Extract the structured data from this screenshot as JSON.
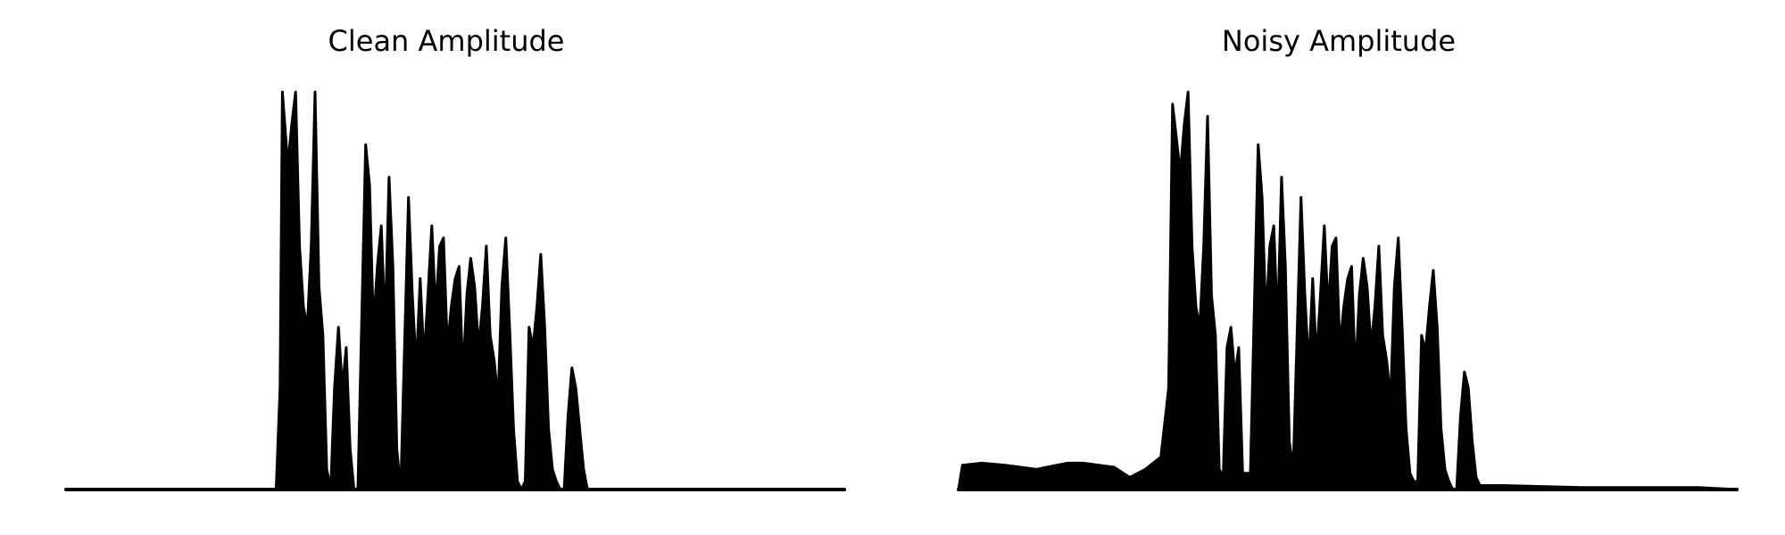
{
  "chart_data": [
    {
      "type": "area",
      "title": "Clean Amplitude",
      "xlabel": "",
      "ylabel": "",
      "axes_visible": false,
      "grid": false,
      "color": "#000000",
      "x": [
        0.0,
        0.27,
        0.275,
        0.278,
        0.285,
        0.29,
        0.295,
        0.3,
        0.305,
        0.31,
        0.315,
        0.32,
        0.325,
        0.33,
        0.335,
        0.34,
        0.345,
        0.35,
        0.355,
        0.36,
        0.365,
        0.37,
        0.375,
        0.385,
        0.39,
        0.395,
        0.4,
        0.405,
        0.41,
        0.415,
        0.42,
        0.425,
        0.43,
        0.44,
        0.445,
        0.45,
        0.455,
        0.46,
        0.465,
        0.47,
        0.475,
        0.48,
        0.485,
        0.49,
        0.495,
        0.5,
        0.505,
        0.51,
        0.515,
        0.52,
        0.525,
        0.53,
        0.535,
        0.54,
        0.545,
        0.55,
        0.555,
        0.56,
        0.565,
        0.57,
        0.575,
        0.58,
        0.585,
        0.59,
        0.595,
        0.6,
        0.605,
        0.61,
        0.615,
        0.62,
        0.625,
        0.63,
        0.635,
        0.64,
        0.645,
        0.65,
        0.655,
        0.66,
        0.665,
        0.67,
        0.675,
        0.68,
        0.685,
        0.69,
        0.695,
        0.7,
        0.705,
        0.71,
        0.715,
        0.72,
        0.725,
        0.73,
        1.0
      ],
      "values": [
        0.0,
        0.0,
        0.25,
        0.98,
        0.8,
        0.9,
        0.98,
        0.6,
        0.45,
        0.4,
        0.6,
        0.98,
        0.5,
        0.38,
        0.05,
        0.0,
        0.25,
        0.4,
        0.25,
        0.35,
        0.1,
        0.0,
        0.0,
        0.85,
        0.75,
        0.4,
        0.55,
        0.65,
        0.4,
        0.77,
        0.55,
        0.1,
        0.0,
        0.72,
        0.48,
        0.3,
        0.52,
        0.32,
        0.48,
        0.65,
        0.44,
        0.6,
        0.62,
        0.35,
        0.45,
        0.52,
        0.55,
        0.28,
        0.48,
        0.57,
        0.5,
        0.35,
        0.45,
        0.6,
        0.38,
        0.32,
        0.22,
        0.5,
        0.62,
        0.4,
        0.15,
        0.02,
        0.0,
        0.02,
        0.4,
        0.35,
        0.45,
        0.58,
        0.4,
        0.15,
        0.05,
        0.02,
        0.0,
        0.0,
        0.18,
        0.3,
        0.25,
        0.15,
        0.05,
        0.0,
        0.0,
        0.0,
        0.0,
        0.0,
        0.0,
        0.0,
        0.0,
        0.0,
        0.0,
        0.0,
        0.0,
        0.0,
        0.0
      ],
      "xlim": [
        0,
        1
      ],
      "ylim": [
        0,
        1
      ]
    },
    {
      "type": "area",
      "title": "Noisy Amplitude",
      "xlabel": "",
      "ylabel": "",
      "axes_visible": false,
      "grid": false,
      "color": "#000000",
      "x": [
        0.0,
        0.005,
        0.03,
        0.06,
        0.1,
        0.14,
        0.16,
        0.2,
        0.22,
        0.24,
        0.26,
        0.27,
        0.275,
        0.285,
        0.29,
        0.295,
        0.3,
        0.305,
        0.31,
        0.315,
        0.32,
        0.325,
        0.33,
        0.335,
        0.34,
        0.345,
        0.35,
        0.355,
        0.36,
        0.365,
        0.37,
        0.375,
        0.385,
        0.39,
        0.395,
        0.4,
        0.405,
        0.41,
        0.415,
        0.42,
        0.425,
        0.43,
        0.44,
        0.445,
        0.45,
        0.455,
        0.46,
        0.465,
        0.47,
        0.475,
        0.48,
        0.485,
        0.49,
        0.495,
        0.5,
        0.505,
        0.51,
        0.515,
        0.52,
        0.525,
        0.53,
        0.535,
        0.54,
        0.545,
        0.55,
        0.555,
        0.56,
        0.565,
        0.57,
        0.575,
        0.58,
        0.585,
        0.59,
        0.595,
        0.6,
        0.605,
        0.61,
        0.615,
        0.62,
        0.625,
        0.63,
        0.635,
        0.64,
        0.645,
        0.65,
        0.655,
        0.66,
        0.665,
        0.67,
        0.7,
        0.8,
        0.95,
        1.0
      ],
      "values": [
        0.0,
        0.06,
        0.065,
        0.06,
        0.05,
        0.065,
        0.065,
        0.055,
        0.03,
        0.05,
        0.08,
        0.25,
        0.95,
        0.78,
        0.9,
        0.98,
        0.6,
        0.45,
        0.4,
        0.6,
        0.92,
        0.48,
        0.38,
        0.05,
        0.03,
        0.35,
        0.4,
        0.28,
        0.35,
        0.04,
        0.04,
        0.04,
        0.85,
        0.72,
        0.42,
        0.6,
        0.65,
        0.4,
        0.77,
        0.55,
        0.12,
        0.05,
        0.72,
        0.48,
        0.3,
        0.52,
        0.32,
        0.48,
        0.65,
        0.44,
        0.6,
        0.62,
        0.35,
        0.45,
        0.52,
        0.55,
        0.28,
        0.48,
        0.57,
        0.5,
        0.35,
        0.45,
        0.6,
        0.38,
        0.32,
        0.22,
        0.5,
        0.62,
        0.4,
        0.15,
        0.04,
        0.02,
        0.02,
        0.38,
        0.34,
        0.45,
        0.54,
        0.4,
        0.15,
        0.05,
        0.02,
        0.0,
        0.0,
        0.18,
        0.29,
        0.25,
        0.12,
        0.03,
        0.01,
        0.01,
        0.005,
        0.005,
        0.0
      ],
      "xlim": [
        0,
        1
      ],
      "ylim": [
        0,
        1
      ]
    }
  ]
}
